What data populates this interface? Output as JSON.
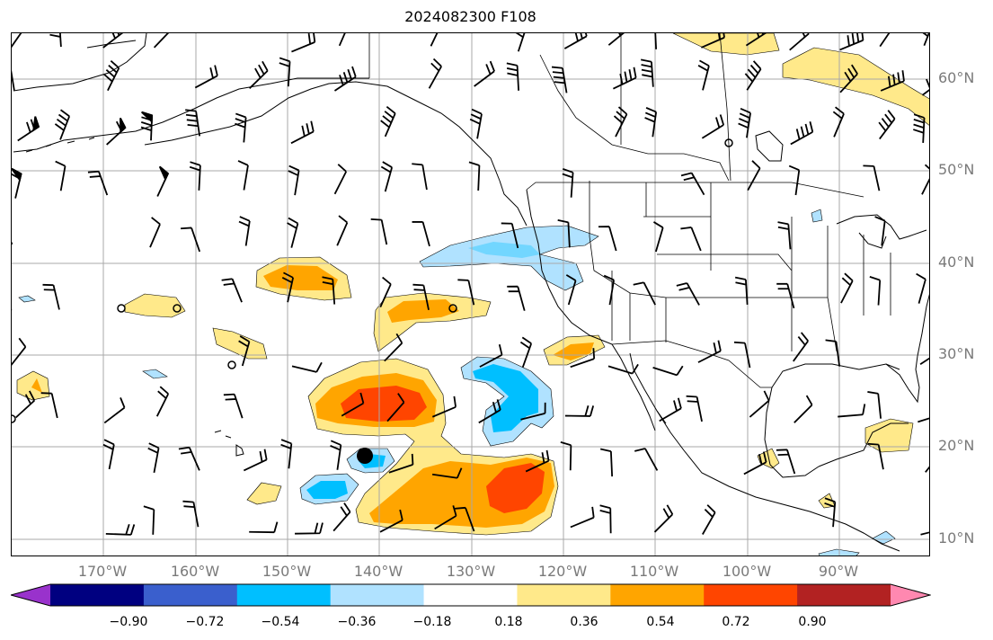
{
  "title": "2024082300 F108",
  "map": {
    "type": "forecast-anomaly-map",
    "projection": "plate-carree",
    "lon_range": [
      -180,
      -80
    ],
    "lat_range": [
      8,
      65
    ],
    "gridlines": true,
    "lon_ticks": [
      "170°W",
      "160°W",
      "150°W",
      "140°W",
      "130°W",
      "120°W",
      "110°W",
      "100°W",
      "90°W"
    ],
    "lat_ticks": [
      "60°N",
      "50°N",
      "40°N",
      "30°N",
      "20°N",
      "10°N"
    ],
    "overlays": [
      "coastlines",
      "state-borders",
      "country-borders",
      "wind-barbs",
      "low-center-marker"
    ],
    "low_center_marker": {
      "lon": -141,
      "lat": 19
    }
  },
  "colorbar": {
    "orientation": "horizontal",
    "extend": "both",
    "tick_labels": [
      "−0.90",
      "−0.72",
      "−0.54",
      "−0.36",
      "−0.18",
      "0.18",
      "0.36",
      "0.54",
      "0.72",
      "0.90"
    ],
    "colors": [
      "#9932cc",
      "#000080",
      "#3a5fcd",
      "#00bfff",
      "#b0e2ff",
      "#ffffff",
      "#ffe98a",
      "#ffa500",
      "#ff4500",
      "#b22222",
      "#ff88b0"
    ]
  }
}
